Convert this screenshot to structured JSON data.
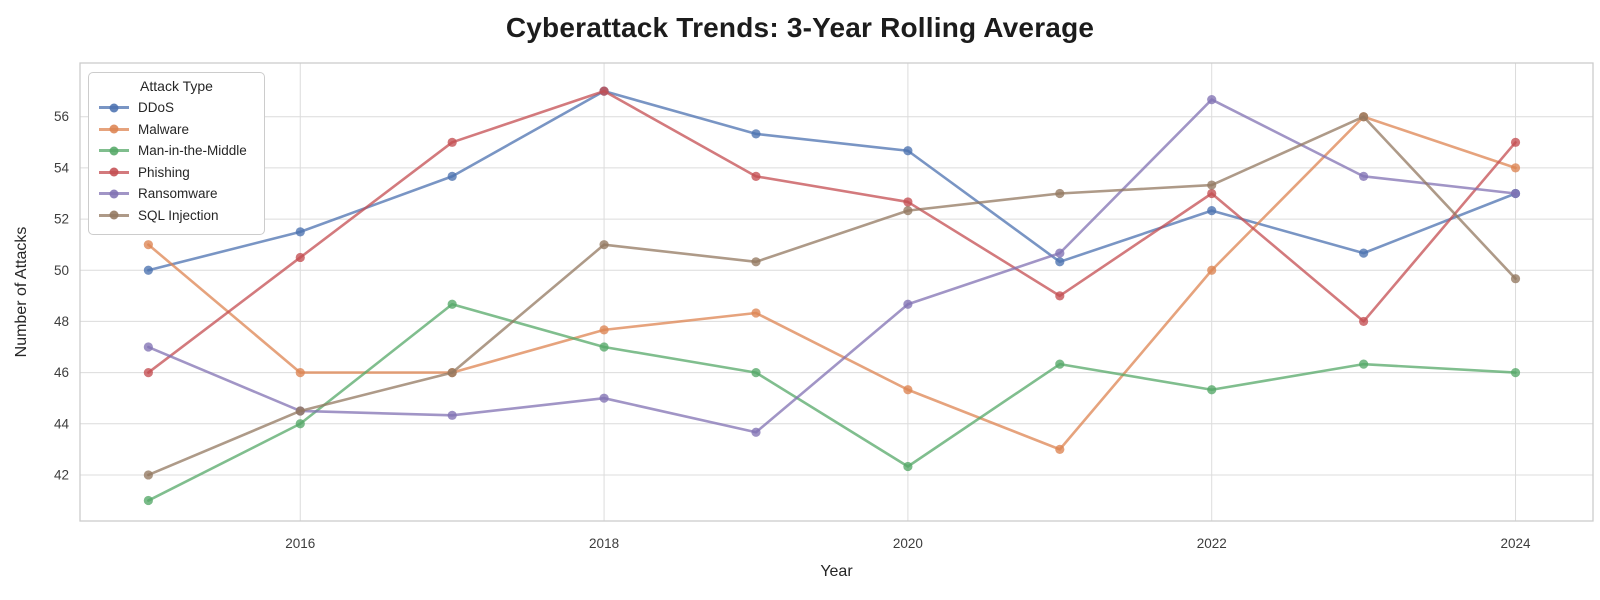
{
  "chart_data": {
    "type": "line",
    "title": "Cyberattack Trends: 3-Year Rolling Average",
    "xlabel": "Year",
    "ylabel": "Number of Attacks",
    "x": [
      2015,
      2016,
      2017,
      2018,
      2019,
      2020,
      2021,
      2022,
      2023,
      2024
    ],
    "xticks": [
      2016,
      2018,
      2020,
      2022,
      2024
    ],
    "yticks": [
      42,
      44,
      46,
      48,
      50,
      52,
      54,
      56
    ],
    "xlim": [
      2014.55,
      2024.51
    ],
    "ylim": [
      40.2,
      58.1
    ],
    "grid": true,
    "background": "#ffffff",
    "gridline_color": "#dcdcdc",
    "spine_color": "#cccccc",
    "legend": {
      "title": "Attack Type",
      "position": "upper-left"
    },
    "series": [
      {
        "name": "DDoS",
        "color": "#4C72B0",
        "values": [
          50,
          51.5,
          53.67,
          57,
          55.33,
          54.67,
          50.33,
          52.33,
          50.67,
          53
        ]
      },
      {
        "name": "Malware",
        "color": "#DD8452",
        "values": [
          51,
          46,
          46,
          47.67,
          48.33,
          45.33,
          43,
          50,
          56,
          54
        ]
      },
      {
        "name": "Man-in-the-Middle",
        "color": "#55A868",
        "values": [
          41,
          44,
          48.67,
          47,
          46,
          42.33,
          46.33,
          45.33,
          46.33,
          46
        ]
      },
      {
        "name": "Phishing",
        "color": "#C44E52",
        "values": [
          46,
          50.5,
          55,
          57,
          53.67,
          52.67,
          49,
          53,
          48,
          55
        ]
      },
      {
        "name": "Ransomware",
        "color": "#8172B3",
        "values": [
          47,
          44.5,
          44.33,
          45,
          43.67,
          48.67,
          50.67,
          56.67,
          53.67,
          53
        ]
      },
      {
        "name": "SQL Injection",
        "color": "#937860",
        "values": [
          42,
          44.5,
          46,
          51,
          50.33,
          52.33,
          53,
          53.33,
          56,
          49.67
        ]
      }
    ]
  }
}
